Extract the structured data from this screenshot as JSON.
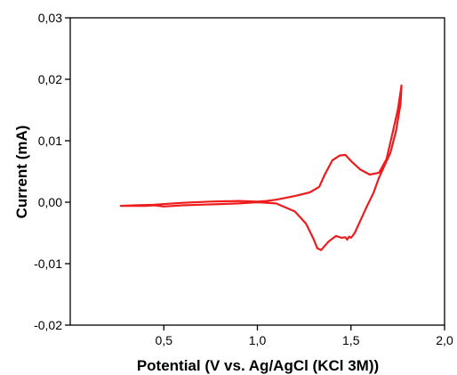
{
  "chart_data": {
    "type": "line",
    "title": "",
    "xlabel": "Potential (V vs. Ag/AgCl (KCl 3M))",
    "ylabel": "Current (mA)",
    "xlim": [
      0.0,
      2.0
    ],
    "ylim": [
      -0.02,
      0.03
    ],
    "x_ticks": [
      0.5,
      1.0,
      1.5,
      2.0
    ],
    "x_tick_labels": [
      "0,5",
      "1,0",
      "1,5",
      "2,0"
    ],
    "y_ticks": [
      -0.02,
      -0.01,
      0.0,
      0.01,
      0.02,
      0.03
    ],
    "y_tick_labels": [
      "-0,02",
      "-0,01",
      "0,00",
      "0,01",
      "0,02",
      "0,03"
    ],
    "grid": false,
    "legend": "none",
    "color": "#ee1c1c",
    "series": [
      {
        "x": [
          0.27,
          0.35,
          0.45,
          0.6,
          0.75,
          0.9,
          1.0,
          1.05,
          1.1,
          1.2,
          1.28,
          1.33,
          1.36,
          1.4,
          1.44,
          1.47,
          1.5,
          1.55,
          1.6,
          1.65,
          1.69,
          1.72,
          1.75,
          1.77,
          1.765,
          1.74,
          1.71,
          1.68,
          1.65,
          1.62,
          1.58,
          1.55,
          1.52,
          1.5,
          1.49,
          1.48,
          1.47,
          1.45,
          1.42,
          1.38,
          1.34,
          1.32,
          1.3,
          1.26,
          1.2,
          1.1,
          1.0,
          0.9,
          0.8,
          0.7,
          0.6,
          0.5,
          0.45,
          0.4,
          0.3,
          0.27
        ],
        "y": [
          -0.0006,
          -0.0005,
          -0.0004,
          -0.0001,
          0.0001,
          0.0002,
          0.0001,
          0.0002,
          0.0004,
          0.001,
          0.0016,
          0.0025,
          0.0045,
          0.0068,
          0.0076,
          0.0077,
          0.0067,
          0.0053,
          0.0045,
          0.0048,
          0.007,
          0.011,
          0.015,
          0.019,
          0.016,
          0.0115,
          0.008,
          0.006,
          0.004,
          0.0015,
          -0.001,
          -0.003,
          -0.005,
          -0.0058,
          -0.0056,
          -0.0061,
          -0.0057,
          -0.0058,
          -0.0055,
          -0.0064,
          -0.0078,
          -0.0075,
          -0.006,
          -0.0035,
          -0.0015,
          -0.0002,
          0.0,
          -0.0002,
          -0.0003,
          -0.0004,
          -0.0005,
          -0.0007,
          -0.0005,
          -0.0006,
          -0.0006,
          -0.0006
        ]
      }
    ]
  }
}
